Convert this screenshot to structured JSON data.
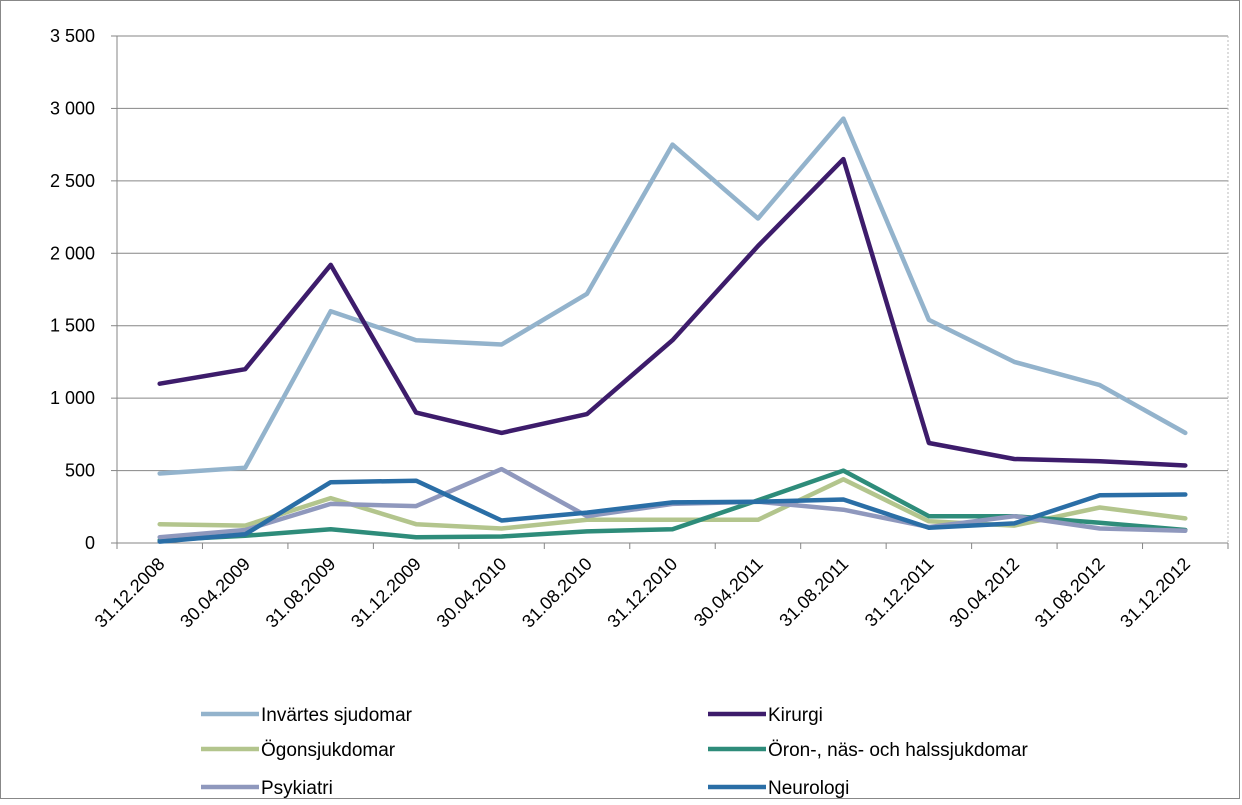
{
  "chart_data": {
    "type": "line",
    "title": "",
    "xlabel": "",
    "ylabel": "",
    "ylim": [
      0,
      3500
    ],
    "y_ticks": [
      0,
      500,
      1000,
      1500,
      2000,
      2500,
      3000,
      3500
    ],
    "y_tick_labels": [
      "0",
      "500",
      "1 000",
      "1 500",
      "2 000",
      "2 500",
      "3 000",
      "3 500"
    ],
    "categories": [
      "31.12.2008",
      "30.04.2009",
      "31.08.2009",
      "31.12.2009",
      "30.04.2010",
      "31.08.2010",
      "31.12.2010",
      "30.04.2011",
      "31.08.2011",
      "31.12.2011",
      "30.04.2012",
      "31.08.2012",
      "31.12.2012"
    ],
    "grid": "horizontal",
    "legend_position": "bottom",
    "series": [
      {
        "name": "Invärtes sjudomar",
        "color": "#93b3cc",
        "values": [
          480,
          520,
          1600,
          1400,
          1370,
          1720,
          2750,
          2240,
          2930,
          1540,
          1250,
          1090,
          760
        ]
      },
      {
        "name": "Kirurgi",
        "color": "#3d1c6b",
        "values": [
          1100,
          1200,
          1920,
          900,
          760,
          890,
          1400,
          2050,
          2650,
          690,
          580,
          565,
          535
        ]
      },
      {
        "name": "Ögonsjukdomar",
        "color": "#b3c58d",
        "values": [
          130,
          120,
          310,
          130,
          100,
          160,
          160,
          160,
          440,
          150,
          120,
          245,
          170
        ]
      },
      {
        "name": "Öron-, näs- och halssjukdomar",
        "color": "#2e8c7a",
        "values": [
          20,
          50,
          95,
          40,
          45,
          80,
          95,
          295,
          500,
          185,
          185,
          140,
          90
        ]
      },
      {
        "name": "Psykiatri",
        "color": "#8f98bd",
        "values": [
          40,
          90,
          270,
          255,
          510,
          185,
          270,
          285,
          230,
          110,
          185,
          100,
          85
        ]
      },
      {
        "name": "Neurologi",
        "color": "#2a6ea6",
        "values": [
          10,
          60,
          420,
          430,
          155,
          210,
          280,
          285,
          300,
          105,
          135,
          330,
          335
        ]
      }
    ]
  }
}
